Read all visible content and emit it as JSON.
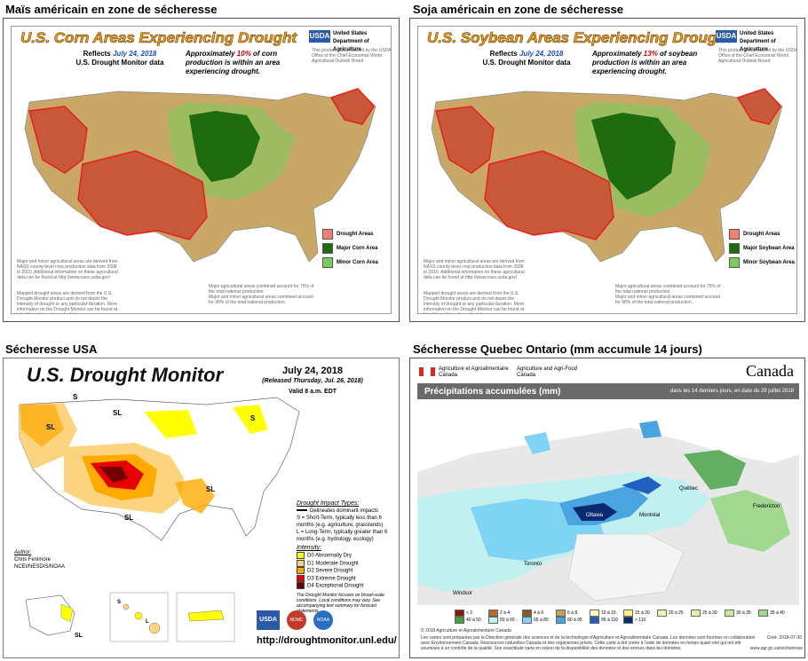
{
  "captions": {
    "corn": "Maïs américain en zone de sécheresse",
    "soy": "Soja américain en zone de sécheresse",
    "drought": "Sécheresse USA",
    "quebec": "Sécheresse Quebec Ontario (mm accumule 14 jours)"
  },
  "corn_map": {
    "title": "U.S. Corn Areas Experiencing Drought",
    "reflects_prefix": "Reflects ",
    "date": "July 24, 2018",
    "data_source": "U.S. Drought Monitor data",
    "approx_prefix": "Approximately ",
    "percent": "10%",
    "approx_suffix": " of corn production is within an area experiencing drought.",
    "usda_logo": "USDA",
    "usda_name": "United States Department of Agriculture",
    "prepared": "This product was prepared by the USDA Office of the Chief Economist World Agricultural Outlook Board",
    "legend": [
      {
        "label": "Drought Areas",
        "color": "#f08070"
      },
      {
        "label": "Major Corn Area",
        "color": "#1e6b10"
      },
      {
        "label": "Minor Corn Area",
        "color": "#7ccb5a"
      }
    ],
    "note_left": "Major and minor agricultural areas are derived from NASS county-level crop production data from 2008 to 2010. Additional information on these agricultural data can be found at http://www.nass.usda.gov/",
    "note_left2": "Mapped drought areas are derived from the U.S. Drought Monitor product and do not depict the intensity of drought or any particular duration. More information on the Drought Monitor can be found at http://droughtmonitor.unl.edu/",
    "stat1": "Major agricultural areas combined account for 75% of the total national production.",
    "stat2": "Major and minor agricultural areas combined account for 98% of the total national production."
  },
  "soy_map": {
    "title": "U.S. Soybean Areas Experiencing Drought",
    "reflects_prefix": "Reflects ",
    "date": "July 24, 2018",
    "data_source": "U.S. Drought Monitor data",
    "approx_prefix": "Approximately ",
    "percent": "13%",
    "approx_suffix": " of soybean production is within an area experiencing drought.",
    "usda_logo": "USDA",
    "usda_name": "United States Department of Agriculture",
    "prepared": "This product was prepared by the USDA Office of the Chief Economist World Agricultural Outlook Board",
    "legend": [
      {
        "label": "Drought Areas",
        "color": "#f08070"
      },
      {
        "label": "Major Soybean Area",
        "color": "#1e6b10"
      },
      {
        "label": "Minor Soybean Area",
        "color": "#7ccb5a"
      }
    ],
    "note_left": "Major and minor agricultural areas are derived from NASS county-level crop production data from 2008 to 2010. Additional information on these agricultural data can be found at http://www.nass.usda.gov/",
    "note_left2": "Mapped drought areas are derived from the U.S. Drought Monitor product and do not depict the intensity of drought or any particular duration. More information on the Drought Monitor can be found at http://droughtmonitor.unl.edu/",
    "stat1": "Major agricultural areas combined account for 75% of the total national production.",
    "stat2": "Major and minor agricultural areas combined account for 98% of the total national production."
  },
  "drought_monitor": {
    "title": "U.S. Drought Monitor",
    "date": "July 24, 2018",
    "released": "(Released Thursday, Jul. 26, 2018)",
    "valid": "Valid 8 a.m. EDT",
    "impact_head": "Drought Impact Types:",
    "impact_line": "Delineates dominant impacts",
    "s_def": "S = Short-Term, typically less than 6 months (e.g. agriculture, grasslands)",
    "l_def": "L = Long-Term, typically greater than 6 months (e.g. hydrology, ecology)",
    "intensity_head": "Intensity:",
    "intensity": [
      {
        "label": "D0 Abnormally Dry",
        "color": "#ffff00"
      },
      {
        "label": "D1 Moderate Drought",
        "color": "#fcd37f"
      },
      {
        "label": "D2 Severe Drought",
        "color": "#ffaa00"
      },
      {
        "label": "D3 Extreme Drought",
        "color": "#e60000"
      },
      {
        "label": "D4 Exceptional Drought",
        "color": "#730000"
      }
    ],
    "focus_note": "The Drought Monitor focuses on broad-scale conditions. Local conditions may vary. See accompanying text summary for forecast statements.",
    "author_head": "Author:",
    "author": "Chris Fenimore",
    "org": "NCEI/NESDIS/NOAA",
    "labels": [
      "S",
      "SL",
      "SL",
      "SL",
      "SL",
      "S",
      "SL",
      "S",
      "L",
      "SL"
    ],
    "url": "http://droughtmonitor.unl.edu/",
    "logos": [
      "USDA",
      "NDMC",
      "NOAA"
    ]
  },
  "canada_map": {
    "dept_fr": "Agriculture et Agroalimentaire Canada",
    "dept_en": "Agriculture and Agri-Food Canada",
    "wordmark": "Canada",
    "title": "Précipitations accumulées (mm)",
    "range": "dans les 14 derniers jours, en date du 29 juillet 2018",
    "cities": [
      "Ottawa",
      "Montréal",
      "Québec",
      "Toronto",
      "Windsor",
      "Fredericton"
    ],
    "legend": [
      {
        "label": "< 2",
        "color": "#8b1a00"
      },
      {
        "label": "2 à 4",
        "color": "#b86a2a"
      },
      {
        "label": "4 à 6",
        "color": "#8a5a2a"
      },
      {
        "label": "6 à 8",
        "color": "#c8a060"
      },
      {
        "label": "10 à 15",
        "color": "#ffffc0"
      },
      {
        "label": "15 à 20",
        "color": "#fff080"
      },
      {
        "label": "20 à 25",
        "color": "#f0f0b0"
      },
      {
        "label": "25 à 30",
        "color": "#e8f0a0"
      },
      {
        "label": "30 à 35",
        "color": "#c8e8a0"
      },
      {
        "label": "35 à 40",
        "color": "#a0d890"
      },
      {
        "label": "40 à 50",
        "color": "#40a040"
      },
      {
        "label": "50 à 65",
        "color": "#c0f0f0"
      },
      {
        "label": "65 à 80",
        "color": "#7fd4f4"
      },
      {
        "label": "80 à 95",
        "color": "#4aa4e0"
      },
      {
        "label": "95 à 110",
        "color": "#2060c0"
      },
      {
        "label": "> 110",
        "color": "#0a2a70"
      }
    ],
    "copyright": "© 2018 Agriculture et Agroalimentaire Canada",
    "footnote": "Les cartes sont préparées par la Direction générale des sciences et de la technologie d'Agriculture et Agroalimentaire Canada. Les données sont fournies en collaboration avec Environnement Canada, Ressources naturelles Canada et des organismes privés. Cette carte a été créée à l'aide de données en temps quasi réel qui ont été soumises à un contrôle de la qualité. Son exactitude varie en raison de la disponibilité des données et des erreurs dans les données.",
    "created": "Créé: 2018-07-30",
    "site": "www.agr.gc.ca/secheresse"
  },
  "colors": {
    "drought_red": "#e8201a",
    "drought_fill": "#c8583a",
    "tan": "#c9a867",
    "major_green": "#1e6b10",
    "minor_green": "#7ccb5a",
    "canada_bar": "#6a6a6a"
  }
}
